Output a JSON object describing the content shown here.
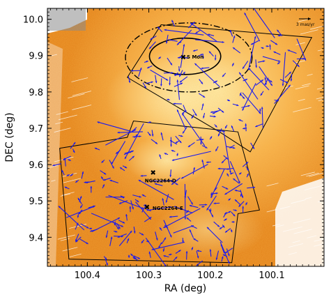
{
  "colors": {
    "vector": "#1a1aee",
    "footprint": "#000000",
    "background_dark": "#e07a10",
    "background_mid": "#f4a640",
    "background_light": "#fbd27a"
  },
  "icons": {
    "object_marker": "x-cross-icon"
  },
  "chart_data": {
    "type": "scatter",
    "title": "",
    "xlabel": "RA (deg)",
    "ylabel": "DEC (deg)",
    "xlim": [
      100.465,
      100.015
    ],
    "ylim": [
      9.32,
      10.03
    ],
    "x_inverted": true,
    "x_ticks": [
      100.4,
      100.3,
      100.2,
      100.1
    ],
    "x_tick_labels": [
      "100.4",
      "100.3",
      "100.2",
      "100.1"
    ],
    "y_ticks": [
      9.4,
      9.5,
      9.6,
      9.7,
      9.8,
      9.9,
      10.0
    ],
    "y_tick_labels": [
      "9.4",
      "9.5",
      "9.6",
      "9.7",
      "9.8",
      "9.9",
      "10.0"
    ],
    "grid": false,
    "annotations": [
      {
        "label": "S Mon",
        "ra": 100.244,
        "dec": 9.896
      },
      {
        "label": "NGC2264-D",
        "ra": 100.293,
        "dec": 9.578
      },
      {
        "label": "NGC2264-E",
        "ra": 100.303,
        "dec": 9.483
      }
    ],
    "scale_bar": {
      "label": "3 mas/yr"
    },
    "footprints": [
      {
        "name": "north-field",
        "ra": [
          100.28,
          100.035,
          100.135,
          100.185,
          100.335
        ],
        "dec": [
          9.985,
          9.95,
          9.635,
          9.69,
          9.84
        ]
      },
      {
        "name": "south-field",
        "ra": [
          100.445,
          100.335,
          100.325,
          100.155,
          100.12,
          100.155,
          100.165,
          100.43
        ],
        "dec": [
          9.645,
          9.675,
          9.72,
          9.69,
          9.475,
          9.465,
          9.33,
          9.34
        ]
      }
    ],
    "ellipses": [
      {
        "name": "inner",
        "ra": 100.241,
        "dec": 9.898,
        "a_ra": 0.058,
        "b_dec": 0.05,
        "style": "solid"
      },
      {
        "name": "outer",
        "ra": 100.235,
        "dec": 9.895,
        "a_ra": 0.103,
        "b_dec": 0.095,
        "style": "dash-dot"
      }
    ],
    "vectors_note": "proper-motion vectors drawn at random positions inside footprints"
  }
}
